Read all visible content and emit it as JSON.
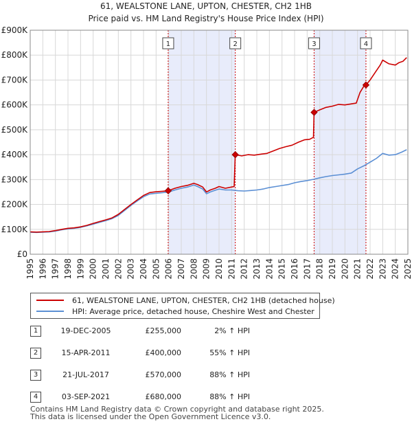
{
  "chart_data": {
    "type": "line",
    "title": "61, WEALSTONE LANE, UPTON, CHESTER, CH2 1HB",
    "subtitle": "Price paid vs. HM Land Registry's House Price Index (HPI)",
    "xlim": [
      1995,
      2025
    ],
    "ylim": [
      0,
      900000
    ],
    "x_ticks": [
      1995,
      1996,
      1997,
      1998,
      1999,
      2000,
      2001,
      2002,
      2003,
      2004,
      2005,
      2006,
      2007,
      2008,
      2009,
      2010,
      2011,
      2012,
      2013,
      2014,
      2015,
      2016,
      2017,
      2018,
      2019,
      2020,
      2021,
      2022,
      2023,
      2024,
      2025
    ],
    "y_ticks": [
      {
        "value": 0,
        "label": "£0"
      },
      {
        "value": 100000,
        "label": "£100K"
      },
      {
        "value": 200000,
        "label": "£200K"
      },
      {
        "value": 300000,
        "label": "£300K"
      },
      {
        "value": 400000,
        "label": "£400K"
      },
      {
        "value": 500000,
        "label": "£500K"
      },
      {
        "value": 600000,
        "label": "£600K"
      },
      {
        "value": 700000,
        "label": "£700K"
      },
      {
        "value": 800000,
        "label": "£800K"
      },
      {
        "value": 900000,
        "label": "£900K"
      }
    ],
    "grid": true,
    "shaded_periods": [
      [
        2005.96,
        2011.29
      ],
      [
        2017.55,
        2021.67
      ]
    ],
    "series": [
      {
        "name": "61, WEALSTONE LANE, UPTON, CHESTER, CH2 1HB (detached house)",
        "color": "#cc0000",
        "x": [
          1995,
          1995.5,
          1996,
          1996.5,
          1997,
          1997.5,
          1998,
          1998.5,
          1999,
          1999.5,
          2000,
          2000.5,
          2001,
          2001.5,
          2002,
          2002.5,
          2003,
          2003.5,
          2004,
          2004.5,
          2005,
          2005.5,
          2005.96,
          2006.5,
          2007,
          2007.5,
          2008,
          2008.3,
          2008.7,
          2009,
          2009.3,
          2009.7,
          2010,
          2010.5,
          2011,
          2011.2,
          2011.29,
          2011.8,
          2012.3,
          2012.8,
          2013.3,
          2013.8,
          2014.3,
          2014.8,
          2015.3,
          2015.8,
          2016.3,
          2016.8,
          2017.2,
          2017.5,
          2017.55,
          2018,
          2018.5,
          2019,
          2019.5,
          2020,
          2020.5,
          2020.9,
          2021.2,
          2021.5,
          2021.67,
          2022,
          2022.4,
          2022.8,
          2023,
          2023.5,
          2024,
          2024.3,
          2024.6,
          2024.9
        ],
        "values": [
          90000,
          89000,
          90000,
          91000,
          95000,
          100000,
          104000,
          106000,
          110000,
          116000,
          124000,
          131000,
          138000,
          146000,
          160000,
          180000,
          200000,
          218000,
          236000,
          248000,
          251000,
          253000,
          255000,
          265000,
          272000,
          277000,
          285000,
          280000,
          270000,
          250000,
          258000,
          265000,
          272000,
          265000,
          270000,
          272000,
          400000,
          395000,
          400000,
          398000,
          402000,
          405000,
          415000,
          425000,
          432000,
          438000,
          450000,
          460000,
          462000,
          470000,
          570000,
          580000,
          590000,
          595000,
          602000,
          600000,
          604000,
          607000,
          650000,
          675000,
          680000,
          700000,
          730000,
          760000,
          780000,
          765000,
          760000,
          770000,
          775000,
          790000
        ]
      },
      {
        "name": "HPI: Average price, detached house, Cheshire West and Chester",
        "color": "#5b8fd4",
        "x": [
          1995,
          1995.5,
          1996,
          1996.5,
          1997,
          1997.5,
          1998,
          1998.5,
          1999,
          1999.5,
          2000,
          2000.5,
          2001,
          2001.5,
          2002,
          2002.5,
          2003,
          2003.5,
          2004,
          2004.5,
          2005,
          2005.5,
          2006,
          2006.5,
          2007,
          2007.5,
          2008,
          2008.3,
          2008.7,
          2009,
          2009.3,
          2009.7,
          2010,
          2010.5,
          2011,
          2011.5,
          2012,
          2012.5,
          2013,
          2013.5,
          2014,
          2014.5,
          2015,
          2015.5,
          2016,
          2016.5,
          2017,
          2017.5,
          2018,
          2018.5,
          2019,
          2019.5,
          2020,
          2020.5,
          2021,
          2021.5,
          2022,
          2022.5,
          2023,
          2023.5,
          2024,
          2024.5,
          2024.9
        ],
        "values": [
          88000,
          87500,
          88500,
          89500,
          93000,
          98000,
          102000,
          104000,
          108000,
          114000,
          121000,
          128000,
          135000,
          143000,
          156000,
          176000,
          196000,
          214000,
          231000,
          242000,
          245000,
          247000,
          250000,
          258000,
          265000,
          270000,
          278000,
          272000,
          262000,
          243000,
          250000,
          257000,
          262000,
          258000,
          258000,
          255000,
          254000,
          256000,
          258000,
          262000,
          268000,
          272000,
          276000,
          280000,
          287000,
          292000,
          296000,
          301000,
          307000,
          312000,
          316000,
          319000,
          322000,
          326000,
          343000,
          355000,
          370000,
          385000,
          405000,
          398000,
          400000,
          410000,
          420000
        ]
      }
    ],
    "sale_points": [
      {
        "label": "1",
        "x": 2005.96,
        "y": 255000
      },
      {
        "label": "2",
        "x": 2011.29,
        "y": 400000
      },
      {
        "label": "3",
        "x": 2017.55,
        "y": 570000
      },
      {
        "label": "4",
        "x": 2021.67,
        "y": 680000
      }
    ]
  },
  "legend": {
    "property_label": "61, WEALSTONE LANE, UPTON, CHESTER, CH2 1HB (detached house)",
    "hpi_label": "HPI: Average price, detached house, Cheshire West and Chester"
  },
  "sales": [
    {
      "num": "1",
      "date": "19-DEC-2005",
      "price": "£255,000",
      "hpi": "2% ↑ HPI"
    },
    {
      "num": "2",
      "date": "15-APR-2011",
      "price": "£400,000",
      "hpi": "55% ↑ HPI"
    },
    {
      "num": "3",
      "date": "21-JUL-2017",
      "price": "£570,000",
      "hpi": "88% ↑ HPI"
    },
    {
      "num": "4",
      "date": "03-SEP-2021",
      "price": "£680,000",
      "hpi": "88% ↑ HPI"
    }
  ],
  "footer": {
    "line1": "Contains HM Land Registry data © Crown copyright and database right 2025.",
    "line2": "This data is licensed under the Open Government Licence v3.0."
  },
  "colors": {
    "property": "#cc0000",
    "hpi": "#5b8fd4",
    "shade": "#e8ecfb",
    "grid": "#d8d8d8"
  }
}
